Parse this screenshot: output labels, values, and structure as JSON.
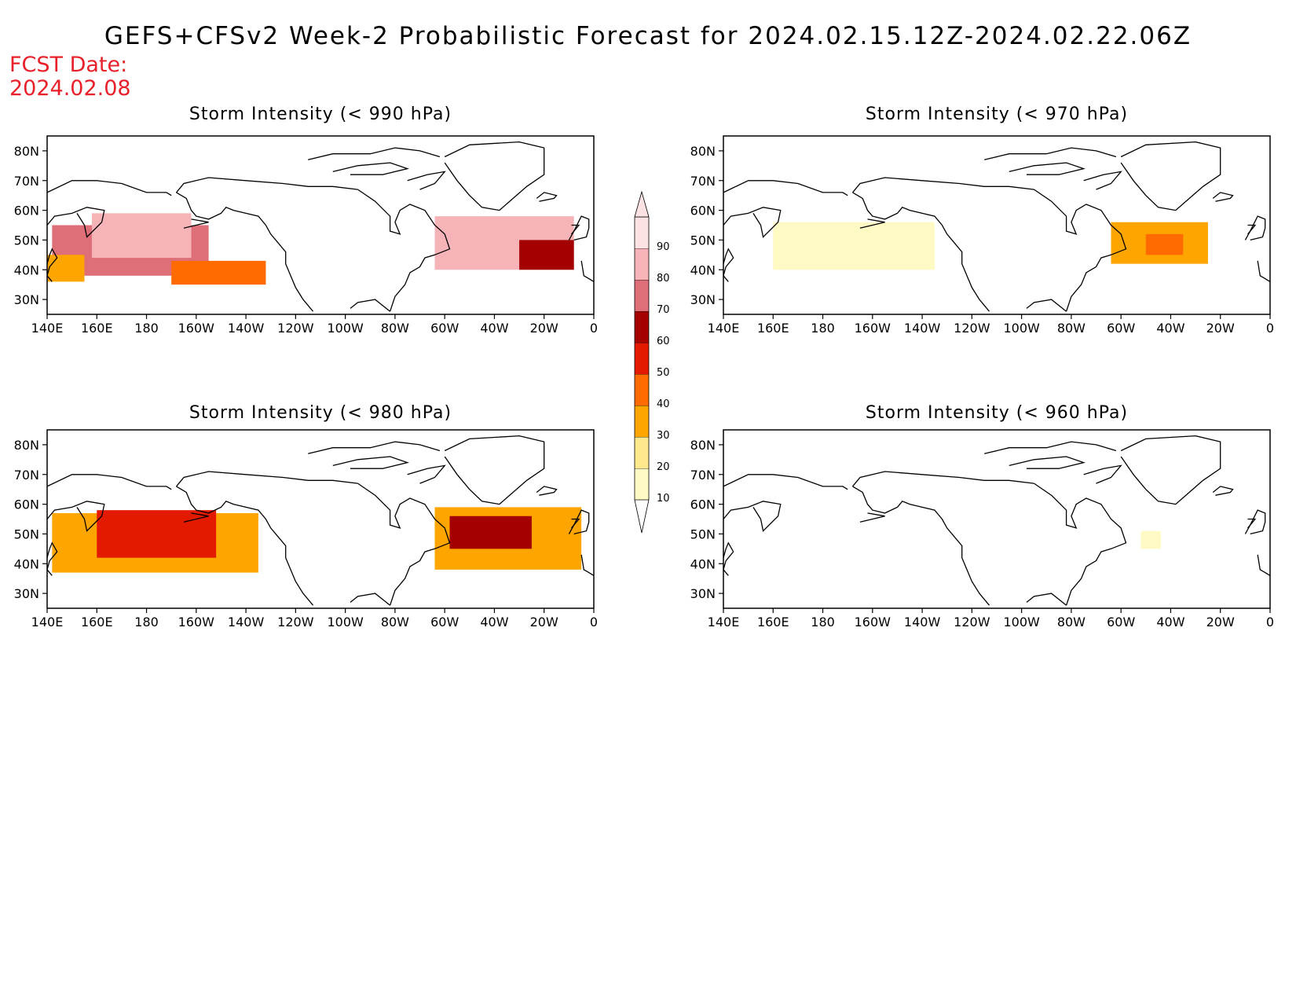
{
  "title": "GEFS+CFSv2 Week-2 Probabilistic Forecast for 2024.02.15.12Z-2024.02.22.06Z",
  "fcst_date": {
    "label": "FCST Date:",
    "value": "2024.02.08"
  },
  "colors": {
    "bins": [
      "#fff9c4",
      "#ffe98c",
      "#ffa500",
      "#ff6b00",
      "#e41a00",
      "#a50000",
      "#de6f78",
      "#f7b4b8",
      "#fde2e3"
    ],
    "label_red": "#e8202a"
  },
  "colorbar": {
    "ticks": [
      "10",
      "20",
      "30",
      "40",
      "50",
      "60",
      "70",
      "80",
      "90"
    ]
  },
  "axes": {
    "lon_labels": [
      "140E",
      "160E",
      "180",
      "160W",
      "140W",
      "120W",
      "100W",
      "80W",
      "60W",
      "40W",
      "20W",
      "0"
    ],
    "lat_labels": [
      "80N",
      "70N",
      "60N",
      "50N",
      "40N",
      "30N"
    ],
    "lon_range": [
      140,
      360
    ],
    "lat_range": [
      25,
      85
    ]
  },
  "panels": [
    {
      "title": "Storm Intensity (< 990 hPa)",
      "regions": [
        {
          "lon": [
            142,
            205
          ],
          "lat": [
            38,
            55
          ],
          "prob": 70
        },
        {
          "lon": [
            158,
            198
          ],
          "lat": [
            44,
            59
          ],
          "prob": 85
        },
        {
          "lon": [
            190,
            228
          ],
          "lat": [
            35,
            43
          ],
          "prob": 45
        },
        {
          "lon": [
            140,
            155
          ],
          "lat": [
            36,
            45
          ],
          "prob": 35
        },
        {
          "lon": [
            296,
            352
          ],
          "lat": [
            40,
            58
          ],
          "prob": 88
        },
        {
          "lon": [
            330,
            352
          ],
          "lat": [
            40,
            50
          ],
          "prob": 65
        }
      ]
    },
    {
      "title": "Storm Intensity (< 970 hPa)",
      "regions": [
        {
          "lon": [
            160,
            225
          ],
          "lat": [
            40,
            56
          ],
          "prob": 15
        },
        {
          "lon": [
            296,
            335
          ],
          "lat": [
            42,
            56
          ],
          "prob": 35
        },
        {
          "lon": [
            310,
            325
          ],
          "lat": [
            45,
            52
          ],
          "prob": 40
        }
      ]
    },
    {
      "title": "Storm Intensity (< 980 hPa)",
      "regions": [
        {
          "lon": [
            142,
            225
          ],
          "lat": [
            37,
            57
          ],
          "prob": 35
        },
        {
          "lon": [
            160,
            208
          ],
          "lat": [
            42,
            58
          ],
          "prob": 50
        },
        {
          "lon": [
            296,
            355
          ],
          "lat": [
            38,
            59
          ],
          "prob": 35
        },
        {
          "lon": [
            302,
            335
          ],
          "lat": [
            45,
            56
          ],
          "prob": 65
        }
      ]
    },
    {
      "title": "Storm Intensity (< 960 hPa)",
      "regions": [
        {
          "lon": [
            308,
            316
          ],
          "lat": [
            45,
            51
          ],
          "prob": 15
        }
      ]
    }
  ]
}
